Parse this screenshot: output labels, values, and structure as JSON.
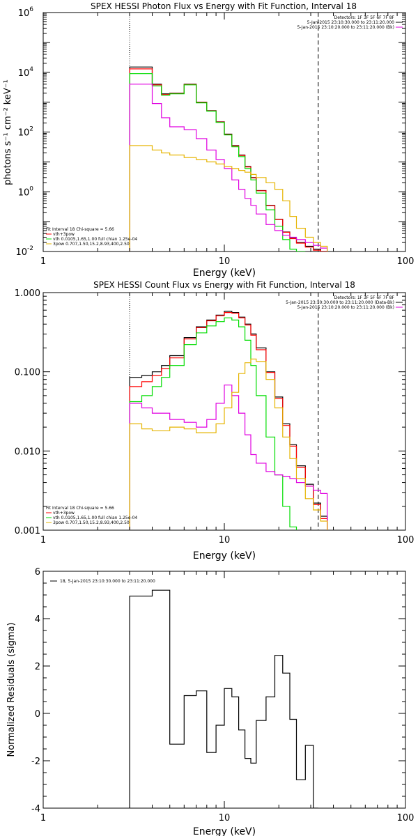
{
  "chart_data": [
    {
      "type": "line",
      "title": "SPEX HESSI Photon Flux vs Energy with Fit Function, Interval 18",
      "xlabel": "Energy (keV)",
      "ylabel": "photons s⁻¹ cm⁻² keV⁻¹",
      "x_scale": "log",
      "y_scale": "log",
      "xlim": [
        1,
        100
      ],
      "ylim": [
        0.01,
        1000000
      ],
      "x_ticks": [
        {
          "v": 1,
          "label": "1"
        },
        {
          "v": 10,
          "label": "10"
        },
        {
          "v": 100,
          "label": "100"
        }
      ],
      "y_ticks": [
        {
          "v": 1000000,
          "base": "10",
          "exp": "6"
        },
        {
          "v": 10000,
          "base": "10",
          "exp": "4"
        },
        {
          "v": 100,
          "base": "10",
          "exp": "2"
        },
        {
          "v": 1,
          "base": "10",
          "exp": "0"
        },
        {
          "v": 0.01,
          "base": "10",
          "exp": "-2"
        }
      ],
      "vlines": [
        {
          "x": 3.0,
          "style": "dotted"
        },
        {
          "x": 33.0,
          "style": "dashed"
        }
      ],
      "legend_info": [
        {
          "text": "Detectors: 1F 3F 5F 6F 7F 8F",
          "color": "#000000"
        },
        {
          "text": "5-Jan-2015 23:10:30.000 to 23:11:20.000",
          "color": "#000000"
        },
        {
          "text": "5-Jan-2015 23:10:20.000 to 23:11:20.000 (Bk)",
          "color": "#e000e0"
        }
      ],
      "legend_fit": [
        {
          "text": "Fit Interval 18   Chi-square = 5.66",
          "color": null
        },
        {
          "text": "vth+3pow",
          "color": "#ff0000"
        },
        {
          "text": "vth 0.0105,1.65,1.00  full chian 1.25e-04",
          "color": "#00dd00"
        },
        {
          "text": "3pow 0.707,1.50,15.2,8.93,400,2.50",
          "color": "#e6b400"
        }
      ],
      "edges": [
        3.0,
        3.5,
        4.0,
        4.5,
        5.0,
        6.0,
        7.0,
        8.0,
        9.0,
        10.0,
        11.0,
        12.0,
        13.0,
        14.0,
        15.0,
        17.0,
        19.0,
        21.0,
        23.0,
        25.0,
        28.0,
        31.0,
        34.0,
        37.0
      ],
      "series": [
        {
          "color": "#000000",
          "values": [
            15000,
            15000,
            4000,
            1900,
            2000,
            4000,
            1000,
            520,
            220,
            85,
            35,
            17,
            7,
            3,
            1.1,
            0.35,
            0.12,
            0.045,
            0.028,
            0.02,
            0.015,
            0.012,
            0.01,
            null
          ]
        },
        {
          "color": "#ff0000",
          "values": [
            13000,
            13000,
            3800,
            1800,
            1950,
            3900,
            980,
            510,
            215,
            82,
            34,
            16.5,
            6.8,
            2.9,
            1.08,
            0.34,
            0.118,
            0.044,
            0.027,
            0.019,
            0.014,
            0.011,
            0.009,
            null
          ]
        },
        {
          "color": "#00dd00",
          "values": [
            9000,
            9000,
            3500,
            1700,
            1900,
            3800,
            950,
            500,
            210,
            80,
            32,
            15,
            6,
            2.5,
            0.9,
            0.25,
            0.07,
            0.025,
            0.012,
            0.01,
            null,
            null,
            null,
            null
          ]
        },
        {
          "color": "#e000e0",
          "values": [
            4000,
            4000,
            900,
            300,
            150,
            120,
            60,
            25,
            12,
            6,
            2.5,
            1.2,
            0.6,
            0.35,
            0.18,
            0.08,
            0.05,
            0.035,
            0.03,
            0.025,
            0.02,
            0.016,
            0.013,
            null
          ]
        },
        {
          "color": "#e6b400",
          "values": [
            35,
            35,
            25,
            20,
            17,
            14,
            12,
            10,
            8.5,
            7,
            6,
            5.2,
            4.5,
            3.8,
            3,
            2,
            1.2,
            0.5,
            0.15,
            0.06,
            0.03,
            0.02,
            0.015,
            0.008
          ]
        }
      ]
    },
    {
      "type": "line",
      "title": "SPEX HESSI Count Flux vs Energy with Fit Function, Interval 18",
      "xlabel": "Energy (keV)",
      "ylabel": "",
      "x_scale": "log",
      "y_scale": "log",
      "xlim": [
        1,
        100
      ],
      "ylim": [
        0.001,
        1.0
      ],
      "x_ticks": [
        {
          "v": 1,
          "label": "1"
        },
        {
          "v": 10,
          "label": "10"
        },
        {
          "v": 100,
          "label": "100"
        }
      ],
      "y_ticks": [
        {
          "v": 1.0,
          "label": "1.000"
        },
        {
          "v": 0.1,
          "label": "0.100"
        },
        {
          "v": 0.01,
          "label": "0.010"
        },
        {
          "v": 0.001,
          "label": "0.001"
        }
      ],
      "vlines": [
        {
          "x": 3.0,
          "style": "dotted"
        },
        {
          "x": 33.0,
          "style": "dashed"
        }
      ],
      "legend_info": [
        {
          "text": "Detectors: 1F 3F 5F 6F 7F 8F",
          "color": "#000000"
        },
        {
          "text": "5-Jan-2015 23:10:30.000 to 23:11:20.000 (Data-Bk)",
          "color": "#000000"
        },
        {
          "text": "5-Jan-2015 23:10:20.000 to 23:11:20.000 (Bk)",
          "color": "#e000e0"
        }
      ],
      "legend_fit": [
        {
          "text": "Fit Interval 18   Chi-square = 5.66",
          "color": null
        },
        {
          "text": "vth+3pow",
          "color": "#ff0000"
        },
        {
          "text": "vth 0.0105,1.65,1.00  full chian 1.25e-04",
          "color": "#00dd00"
        },
        {
          "text": "3pow 0.707,1.50,15.2,8.93,400,2.50",
          "color": "#e6b400"
        }
      ],
      "edges": [
        3.0,
        3.5,
        4.0,
        4.5,
        5.0,
        6.0,
        7.0,
        8.0,
        9.0,
        10.0,
        11.0,
        12.0,
        13.0,
        14.0,
        15.0,
        17.0,
        19.0,
        21.0,
        23.0,
        25.0,
        28.0,
        31.0,
        34.0,
        37.0
      ],
      "series": [
        {
          "color": "#000000",
          "values": [
            0.085,
            0.09,
            0.1,
            0.12,
            0.16,
            0.27,
            0.37,
            0.45,
            0.52,
            0.58,
            0.56,
            0.49,
            0.4,
            0.3,
            0.2,
            0.1,
            0.048,
            0.022,
            0.012,
            0.0065,
            0.0038,
            0.0022,
            0.0015,
            null
          ]
        },
        {
          "color": "#ff0000",
          "values": [
            0.065,
            0.075,
            0.09,
            0.11,
            0.15,
            0.26,
            0.36,
            0.44,
            0.51,
            0.56,
            0.55,
            0.48,
            0.39,
            0.29,
            0.19,
            0.098,
            0.046,
            0.021,
            0.0115,
            0.0062,
            0.0036,
            0.0021,
            0.0014,
            null
          ]
        },
        {
          "color": "#00dd00",
          "values": [
            0.042,
            0.05,
            0.065,
            0.085,
            0.12,
            0.22,
            0.31,
            0.38,
            0.43,
            0.48,
            0.45,
            0.37,
            0.25,
            0.12,
            0.05,
            0.015,
            0.005,
            0.002,
            0.0011,
            null,
            null,
            null,
            null,
            null
          ]
        },
        {
          "color": "#e000e0",
          "values": [
            0.04,
            0.035,
            0.03,
            0.03,
            0.025,
            0.023,
            0.02,
            0.025,
            0.04,
            0.068,
            0.05,
            0.03,
            0.016,
            0.009,
            0.007,
            0.0055,
            0.005,
            0.0048,
            0.0045,
            0.004,
            0.0036,
            0.0032,
            0.0029,
            null
          ]
        },
        {
          "color": "#e6b400",
          "values": [
            0.022,
            0.019,
            0.018,
            0.018,
            0.02,
            0.019,
            0.017,
            0.017,
            0.022,
            0.035,
            0.055,
            0.095,
            0.13,
            0.145,
            0.135,
            0.08,
            0.035,
            0.015,
            0.008,
            0.0045,
            0.0025,
            0.0018,
            0.0013,
            0.001
          ]
        }
      ]
    },
    {
      "type": "line",
      "title": "",
      "xlabel": "Energy (keV)",
      "ylabel": "Normalized Residuals (sigma)",
      "x_scale": "log",
      "y_scale": "linear",
      "xlim": [
        1,
        100
      ],
      "ylim": [
        -4,
        6
      ],
      "x_ticks": [
        {
          "v": 1,
          "label": "1"
        },
        {
          "v": 10,
          "label": "10"
        },
        {
          "v": 100,
          "label": "100"
        }
      ],
      "y_ticks": [
        {
          "v": 6,
          "label": "6"
        },
        {
          "v": 4,
          "label": "4"
        },
        {
          "v": 2,
          "label": "2"
        },
        {
          "v": 0,
          "label": "0"
        },
        {
          "v": -2,
          "label": "-2"
        },
        {
          "v": -4,
          "label": "-4"
        }
      ],
      "legend_info": [
        {
          "text": "18,  5-Jan-2015 23:10:30.000 to 23:11:20.000",
          "color": "#000000"
        }
      ],
      "edges": [
        3.0,
        4.0,
        5.0,
        6.0,
        7.0,
        8.0,
        9.0,
        10.0,
        11.0,
        12.0,
        13.0,
        14.0,
        15.0,
        17.0,
        19.0,
        21.0,
        23.0,
        25.0,
        28.0,
        31.0,
        33.0
      ],
      "series": [
        {
          "color": "#000000",
          "values": [
            4.95,
            5.2,
            -1.3,
            0.75,
            0.95,
            -1.65,
            -0.5,
            1.05,
            0.7,
            -0.7,
            -1.9,
            -2.1,
            -0.3,
            0.7,
            2.45,
            1.7,
            -0.25,
            -2.8,
            -1.35,
            -4.0
          ]
        }
      ]
    }
  ]
}
